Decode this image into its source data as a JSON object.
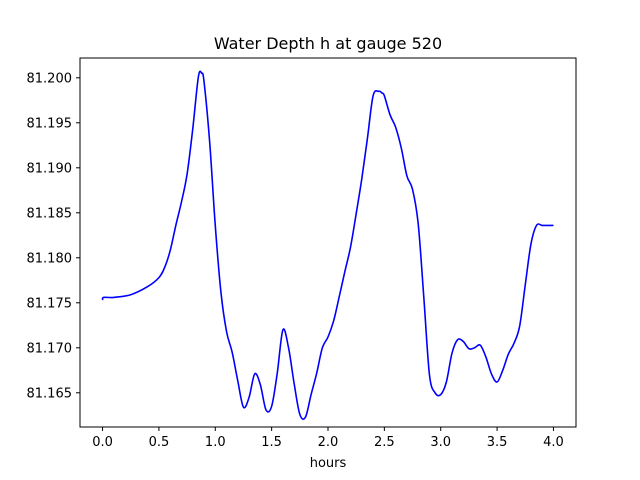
{
  "chart_data": {
    "type": "line",
    "title": "Water Depth h at gauge 520",
    "xlabel": "hours",
    "ylabel": "",
    "xlim": [
      -0.2,
      4.2
    ],
    "ylim": [
      81.1612,
      81.2022
    ],
    "x_ticks": [
      0.0,
      0.5,
      1.0,
      1.5,
      2.0,
      2.5,
      3.0,
      3.5,
      4.0
    ],
    "x_tick_labels": [
      "0.0",
      "0.5",
      "1.0",
      "1.5",
      "2.0",
      "2.5",
      "3.0",
      "3.5",
      "4.0"
    ],
    "y_ticks": [
      81.165,
      81.17,
      81.175,
      81.18,
      81.185,
      81.19,
      81.195,
      81.2
    ],
    "y_tick_labels": [
      "81.165",
      "81.170",
      "81.175",
      "81.180",
      "81.185",
      "81.190",
      "81.195",
      "81.200"
    ],
    "grid": false,
    "series": [
      {
        "color": "#0000ff",
        "x": [
          0.0,
          0.01,
          0.1,
          0.25,
          0.4,
          0.5,
          0.55,
          0.6,
          0.65,
          0.7,
          0.75,
          0.8,
          0.85,
          0.88,
          0.9,
          0.95,
          1.0,
          1.05,
          1.1,
          1.15,
          1.2,
          1.25,
          1.3,
          1.35,
          1.4,
          1.45,
          1.5,
          1.55,
          1.6,
          1.65,
          1.7,
          1.75,
          1.8,
          1.85,
          1.9,
          1.95,
          2.0,
          2.05,
          2.1,
          2.15,
          2.2,
          2.25,
          2.3,
          2.35,
          2.4,
          2.45,
          2.48,
          2.5,
          2.55,
          2.6,
          2.65,
          2.7,
          2.75,
          2.8,
          2.85,
          2.9,
          2.95,
          3.0,
          3.05,
          3.1,
          3.15,
          3.2,
          3.25,
          3.3,
          3.35,
          3.4,
          3.45,
          3.5,
          3.55,
          3.6,
          3.65,
          3.7,
          3.75,
          3.8,
          3.85,
          3.9,
          3.95,
          4.0
        ],
        "values": [
          81.1753,
          81.1756,
          81.1756,
          81.1759,
          81.1768,
          81.1778,
          81.1789,
          81.1808,
          81.1836,
          81.1862,
          81.1893,
          81.1943,
          81.2001,
          81.2005,
          81.1996,
          81.1929,
          81.1836,
          81.1762,
          81.1718,
          81.1695,
          81.1663,
          81.1634,
          81.1645,
          81.1671,
          81.1659,
          81.1631,
          81.1635,
          81.1672,
          81.172,
          81.17,
          81.166,
          81.1626,
          81.1623,
          81.1648,
          81.1672,
          81.17,
          81.1712,
          81.173,
          81.1757,
          81.1785,
          81.1812,
          81.1849,
          81.1888,
          81.1933,
          81.198,
          81.1985,
          81.1983,
          81.198,
          81.1959,
          81.1945,
          81.1922,
          81.1891,
          81.1876,
          81.1838,
          81.1756,
          81.167,
          81.165,
          81.1648,
          81.1662,
          81.1694,
          81.1709,
          81.1707,
          81.1699,
          81.17,
          81.1703,
          81.169,
          81.1671,
          81.1662,
          81.1675,
          81.1693,
          81.1705,
          81.1724,
          81.177,
          81.1815,
          81.1836,
          81.1836,
          81.1836,
          81.1836
        ]
      }
    ]
  }
}
